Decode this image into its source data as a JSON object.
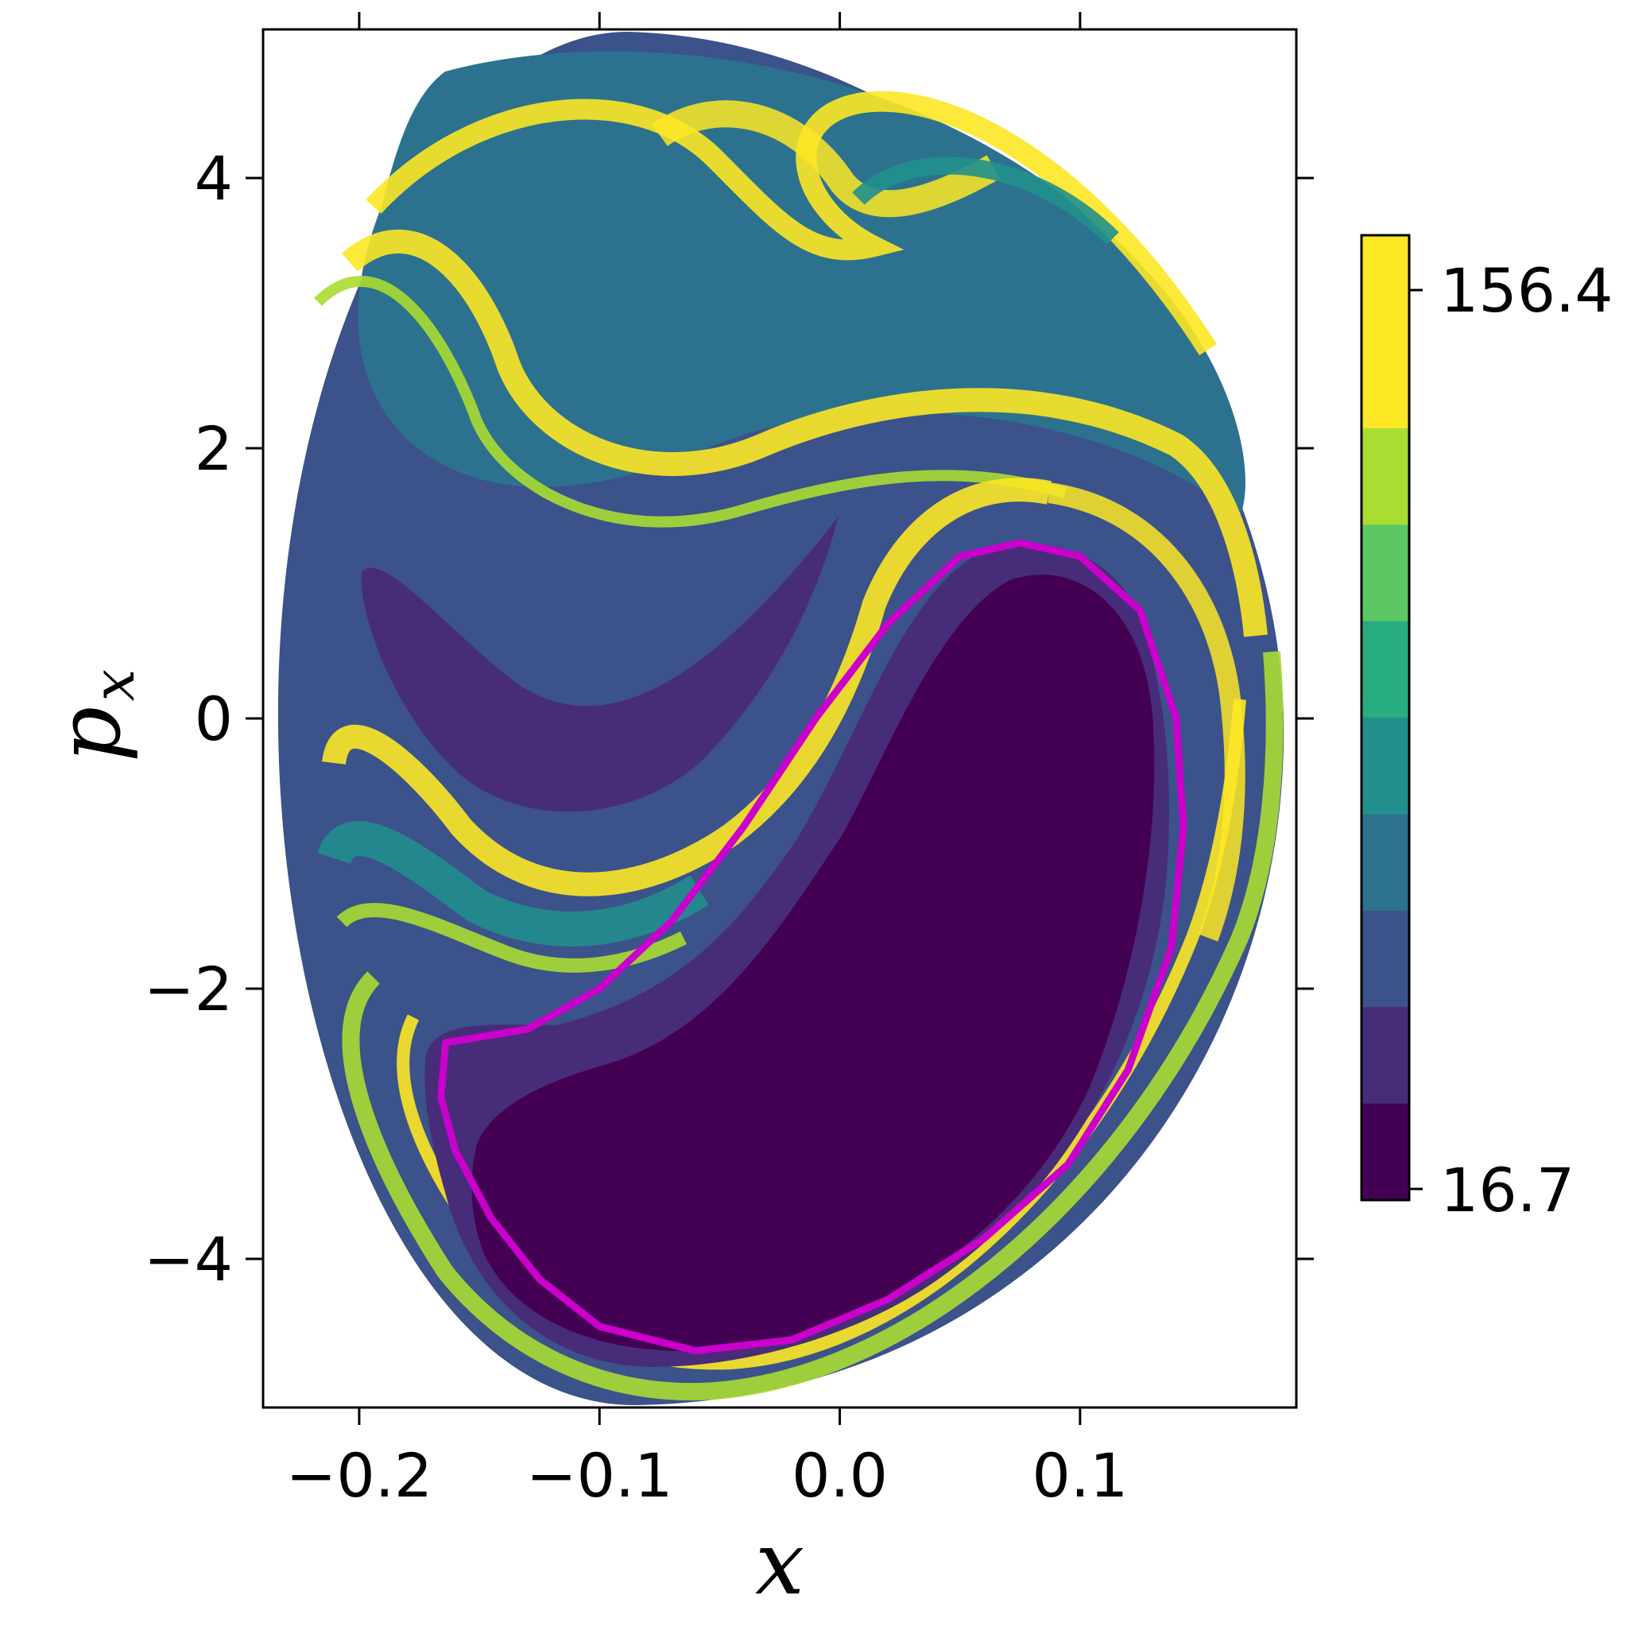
{
  "chart_data": {
    "type": "heatmap",
    "title": "",
    "xlabel": "x",
    "ylabel": "p",
    "ylabel_subscript": "x",
    "xlim": [
      -0.24,
      0.19
    ],
    "ylim": [
      -5.1,
      5.1
    ],
    "x_ticks": [
      -0.2,
      -0.1,
      0.0,
      0.1
    ],
    "x_tick_labels": [
      "−0.2",
      "−0.1",
      "0.0",
      "0.1"
    ],
    "y_ticks": [
      -4,
      -2,
      0,
      2,
      4
    ],
    "y_tick_labels": [
      "−4",
      "−2",
      "0",
      "2",
      "4"
    ],
    "colorbar": {
      "min": 16.7,
      "max": 156.4,
      "levels": 10,
      "tick_labels": [
        "16.7",
        "156.4"
      ],
      "colors": [
        "#440154",
        "#472c7a",
        "#3b528b",
        "#2c728e",
        "#21908d",
        "#27ad81",
        "#5cc863",
        "#aadc32",
        "#fde725",
        "#fde725"
      ]
    },
    "highlight_curve": {
      "color": "#cc00cc",
      "points": [
        [
          -0.164,
          -2.4
        ],
        [
          -0.166,
          -2.8
        ],
        [
          -0.16,
          -3.2
        ],
        [
          -0.145,
          -3.7
        ],
        [
          -0.125,
          -4.15
        ],
        [
          -0.1,
          -4.5
        ],
        [
          -0.06,
          -4.68
        ],
        [
          -0.02,
          -4.6
        ],
        [
          0.02,
          -4.3
        ],
        [
          0.06,
          -3.85
        ],
        [
          0.095,
          -3.3
        ],
        [
          0.12,
          -2.6
        ],
        [
          0.138,
          -1.7
        ],
        [
          0.143,
          -0.8
        ],
        [
          0.14,
          0.0
        ],
        [
          0.125,
          0.8
        ],
        [
          0.1,
          1.2
        ],
        [
          0.075,
          1.3
        ],
        [
          0.05,
          1.2
        ],
        [
          0.02,
          0.7
        ],
        [
          -0.01,
          0.0
        ],
        [
          -0.04,
          -0.8
        ],
        [
          -0.07,
          -1.5
        ],
        [
          -0.1,
          -2.0
        ],
        [
          -0.13,
          -2.3
        ],
        [
          -0.164,
          -2.4
        ]
      ]
    },
    "grid": false
  }
}
